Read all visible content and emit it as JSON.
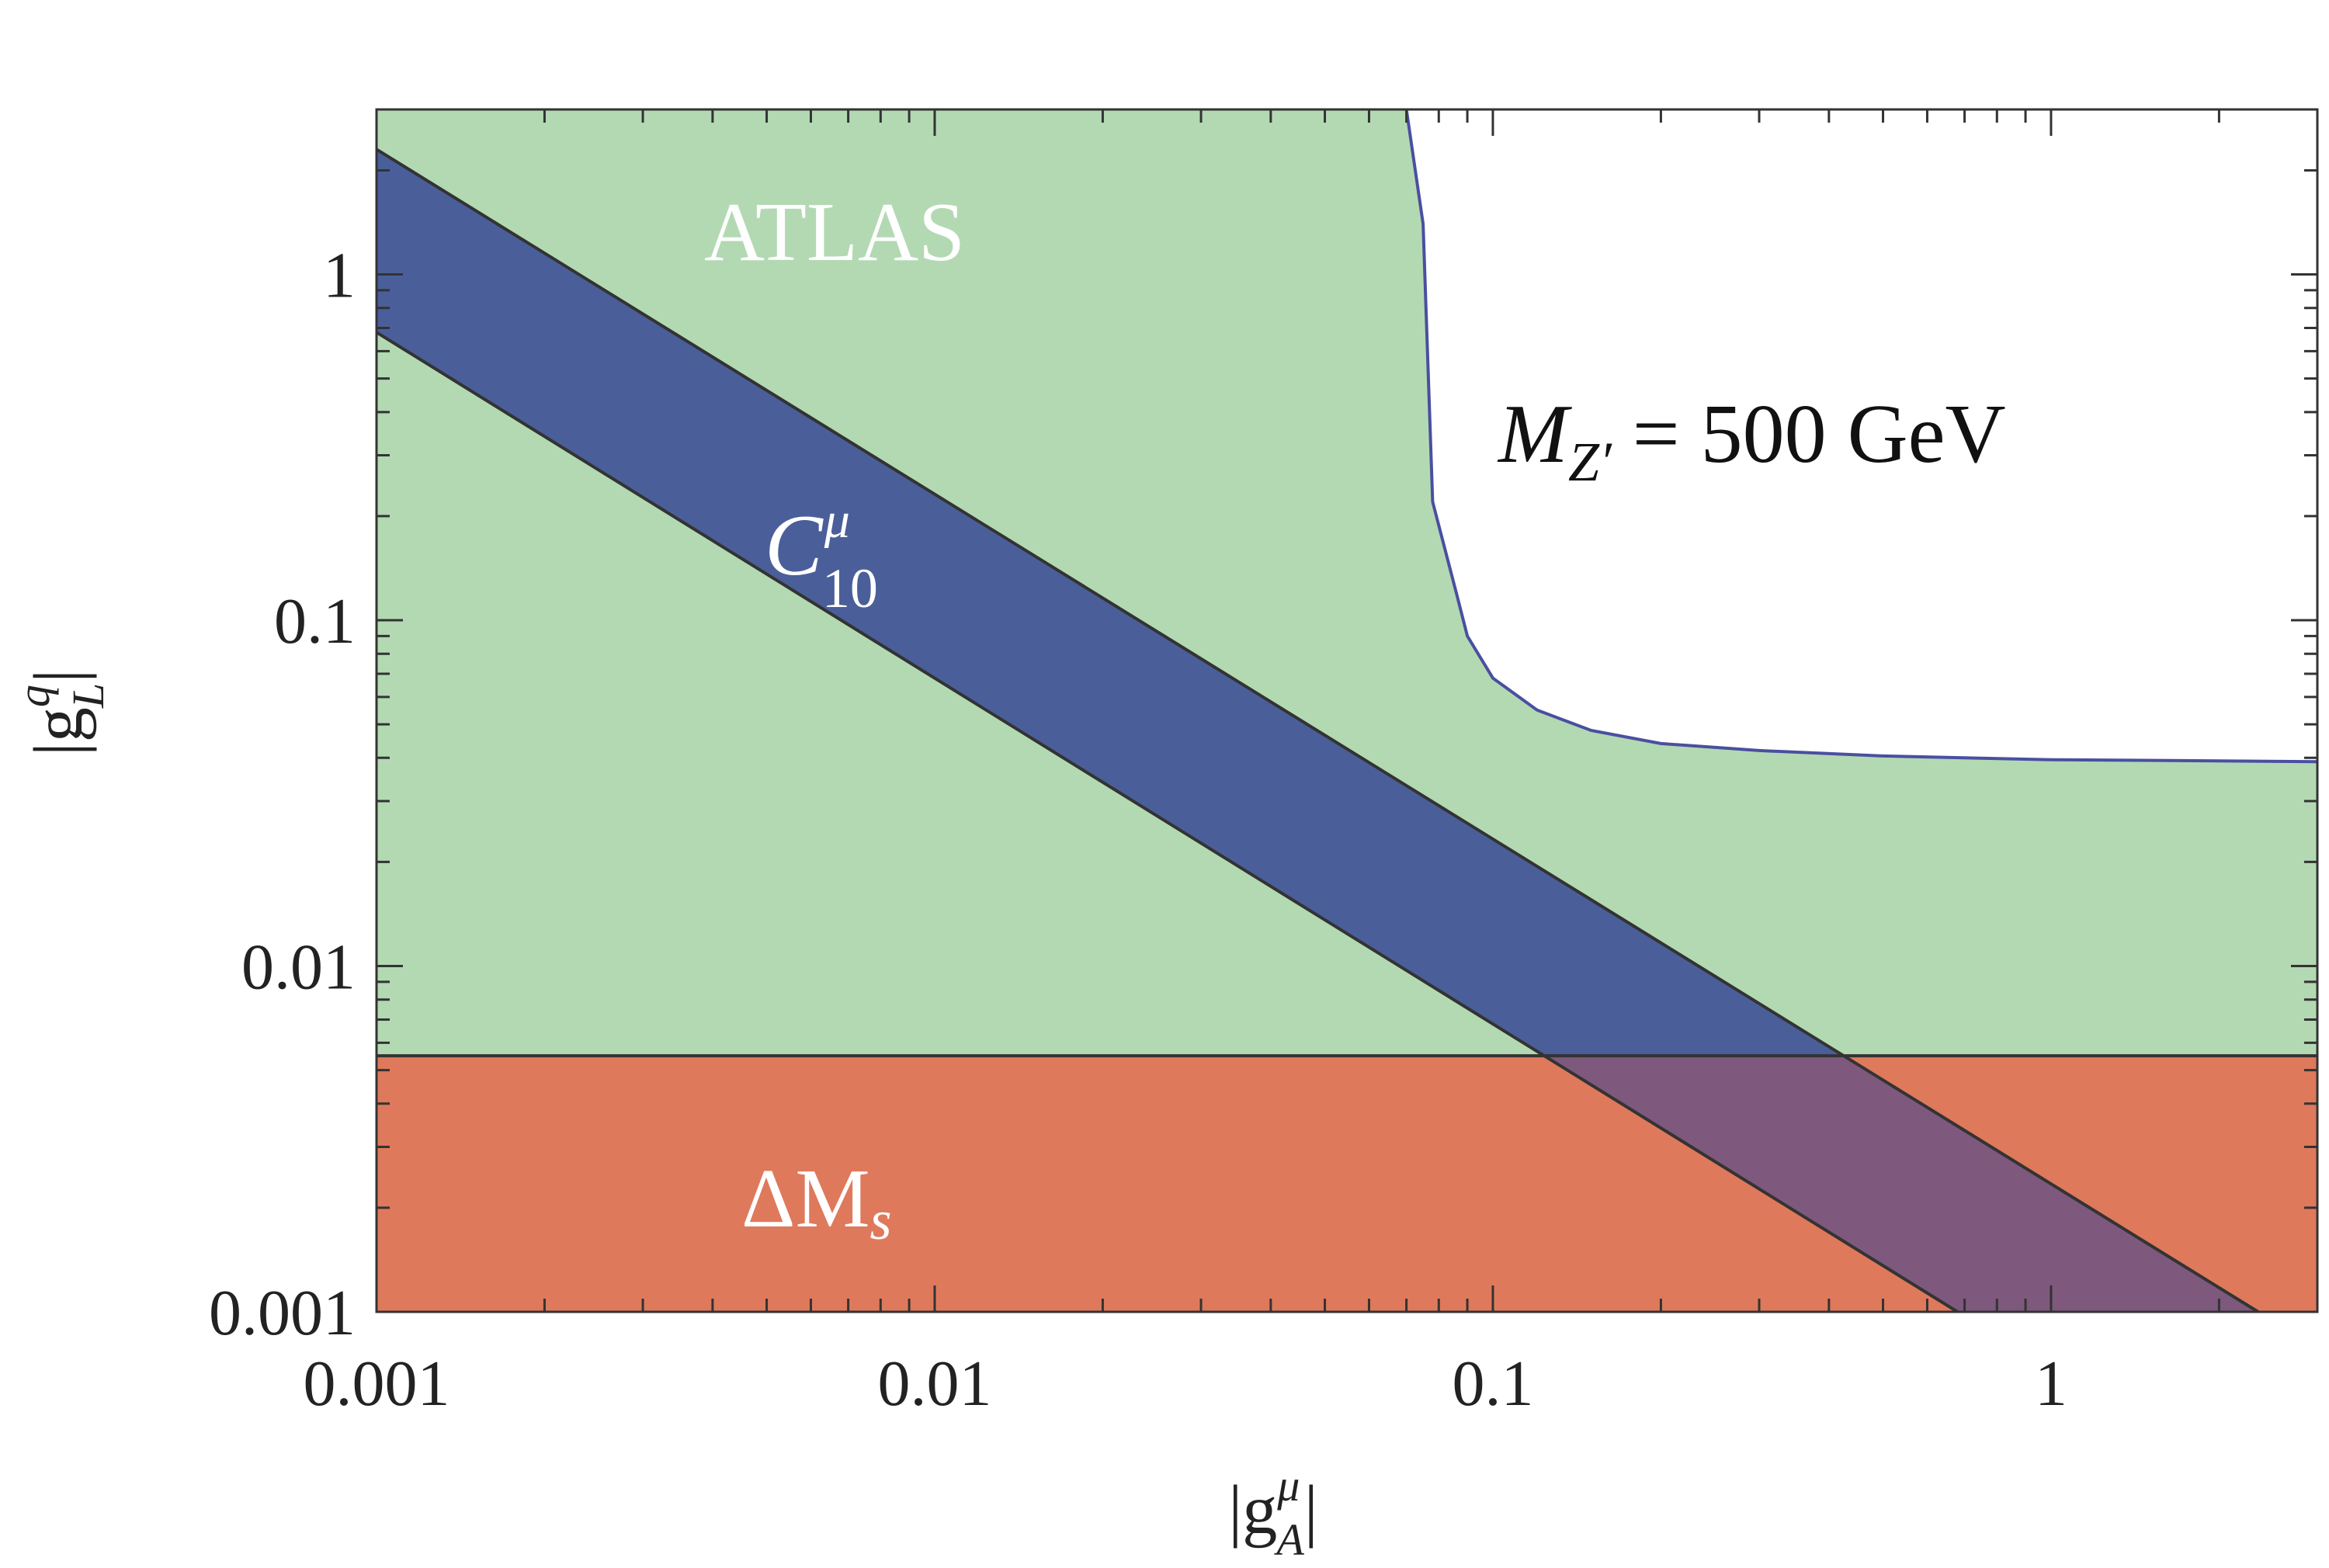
{
  "chart_data": {
    "type": "area",
    "xscale": "log",
    "yscale": "log",
    "xlim": [
      0.001,
      3.0
    ],
    "ylim": [
      0.001,
      3.0
    ],
    "xlabel": {
      "base": "|g",
      "sub": "A",
      "sup": "μ",
      "close": "|"
    },
    "ylabel": {
      "base": "|g",
      "sub": "L",
      "sup": "q",
      "close": "|"
    },
    "xticks": [
      {
        "value": 0.001,
        "label": "0.001"
      },
      {
        "value": 0.01,
        "label": "0.01"
      },
      {
        "value": 0.1,
        "label": "0.1"
      },
      {
        "value": 1,
        "label": "1"
      }
    ],
    "yticks": [
      {
        "value": 0.001,
        "label": "0.001"
      },
      {
        "value": 0.01,
        "label": "0.01"
      },
      {
        "value": 0.1,
        "label": "0.1"
      },
      {
        "value": 1,
        "label": "1"
      }
    ],
    "annotation": {
      "lhs": "M",
      "lhs_sub": "Z′",
      "rhs": " = 500 GeV"
    },
    "regions": [
      {
        "name": "ATLAS",
        "label": "ATLAS",
        "color": "#b3d9b3",
        "edge_color": "#4a4fa0",
        "boundary": [
          [
            0.07,
            3.0
          ],
          [
            0.075,
            1.4
          ],
          [
            0.078,
            0.22
          ],
          [
            0.086,
            0.12
          ],
          [
            0.09,
            0.09
          ],
          [
            0.1,
            0.068
          ],
          [
            0.12,
            0.055
          ],
          [
            0.15,
            0.048
          ],
          [
            0.2,
            0.044
          ],
          [
            0.3,
            0.042
          ],
          [
            0.5,
            0.0405
          ],
          [
            1.0,
            0.0395
          ],
          [
            2.0,
            0.0392
          ],
          [
            3.0,
            0.039
          ]
        ]
      },
      {
        "name": "DeltaMs",
        "label": "ΔM",
        "label_sub": "s",
        "color": "#df795c",
        "edge_color": "#333333",
        "upper_limit": 0.0055
      },
      {
        "name": "C10mu",
        "label": "C",
        "label_sub": "10",
        "label_sup": "μ",
        "color": "#4a5f99",
        "overlap_color": "#7e587d",
        "edge_color": "#333333",
        "upper_line": [
          [
            0.001,
            2.3
          ],
          [
            2.35,
            0.001
          ]
        ],
        "lower_line": [
          [
            0.001,
            0.68
          ],
          [
            0.68,
            0.001
          ]
        ]
      }
    ]
  }
}
